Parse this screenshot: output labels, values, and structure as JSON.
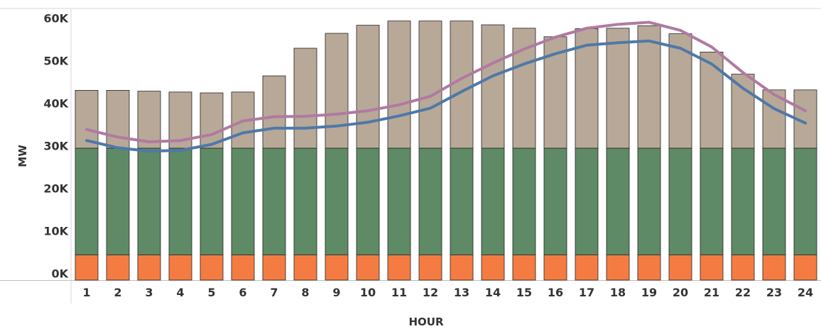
{
  "chart_data": {
    "type": "bar",
    "stacked": true,
    "title": "",
    "xlabel": "HOUR",
    "ylabel": "MW",
    "ylim": [
      0,
      63000
    ],
    "grid": false,
    "y_ticks": [
      0,
      10000,
      20000,
      30000,
      40000,
      50000,
      60000
    ],
    "y_tick_labels": [
      "0K",
      "10K",
      "20K",
      "30K",
      "40K",
      "50K",
      "60K"
    ],
    "categories": [
      "1",
      "2",
      "3",
      "4",
      "5",
      "6",
      "7",
      "8",
      "9",
      "10",
      "11",
      "12",
      "13",
      "14",
      "15",
      "16",
      "17",
      "18",
      "19",
      "20",
      "21",
      "22",
      "23",
      "24"
    ],
    "bar_series": [
      {
        "color": "#f47c42",
        "values": [
          5900,
          5900,
          5900,
          5900,
          5900,
          5900,
          5900,
          5900,
          5900,
          5900,
          5900,
          5900,
          5900,
          5900,
          5900,
          5900,
          5900,
          5900,
          5900,
          5900,
          5900,
          5900,
          5900,
          5900
        ]
      },
      {
        "color": "#5f8a66",
        "values": [
          25100,
          25100,
          25100,
          25100,
          25100,
          25100,
          25100,
          25100,
          25100,
          25100,
          25100,
          25100,
          25100,
          25100,
          25100,
          25100,
          25100,
          25100,
          25100,
          25100,
          25100,
          25100,
          25100,
          25100
        ]
      },
      {
        "color": "#b8a898",
        "values": [
          13600,
          13600,
          13400,
          13200,
          13000,
          13200,
          17000,
          23500,
          27000,
          28900,
          29900,
          29900,
          29900,
          29000,
          28200,
          26200,
          28100,
          28200,
          28800,
          26900,
          22600,
          17400,
          13700,
          13700
        ]
      }
    ],
    "line_series": [
      {
        "color": "#4e79a7",
        "values": [
          32800,
          31100,
          30300,
          30500,
          31900,
          34600,
          35700,
          35700,
          36200,
          37100,
          38600,
          40400,
          44300,
          48000,
          50800,
          53200,
          55200,
          55800,
          56200,
          54500,
          50800,
          45100,
          40300,
          36900
        ]
      },
      {
        "color": "#b07aa1",
        "values": [
          35400,
          33600,
          32500,
          32800,
          34200,
          37400,
          38400,
          38500,
          39000,
          39800,
          41200,
          43200,
          47400,
          51000,
          54300,
          57100,
          59200,
          60100,
          60600,
          58700,
          54800,
          48800,
          43600,
          39800
        ]
      }
    ]
  }
}
